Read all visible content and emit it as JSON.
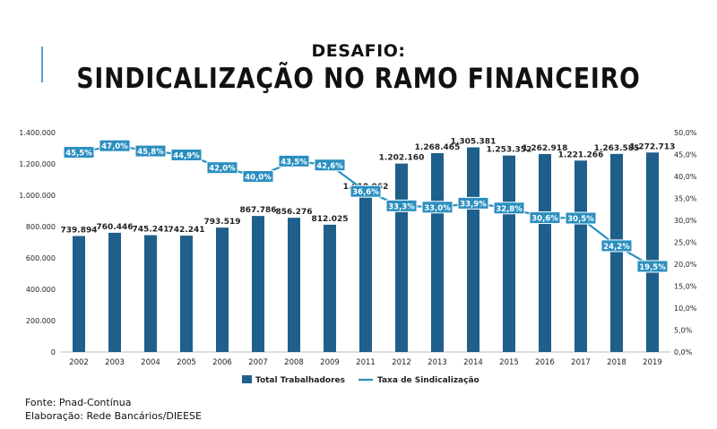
{
  "header": {
    "title_top": "DESAFIO:",
    "title_main": "SINDICALIZAÇÃO NO RAMO FINANCEIRO"
  },
  "footer": {
    "source": "Fonte:  Pnad-Contínua",
    "elaboration": "Elaboração: Rede Bancários/DIEESE"
  },
  "colors": {
    "bar": "#1f5f8b",
    "line": "#2a8fbf",
    "label_box": "#2a8fbf",
    "label_text": "#ffffff",
    "accent": "#4aa3d4"
  },
  "chart_data": {
    "type": "bar",
    "categories": [
      "2002",
      "2003",
      "2004",
      "2005",
      "2006",
      "2007",
      "2008",
      "2009",
      "2011",
      "2012",
      "2013",
      "2014",
      "2015",
      "2016",
      "2017",
      "2018",
      "2019"
    ],
    "series": [
      {
        "name": "Total Trabalhadores",
        "type": "bar",
        "axis": "left",
        "values": [
          739894,
          760446,
          745241,
          742241,
          793519,
          867786,
          856276,
          812025,
          1018062,
          1202160,
          1268465,
          1305381,
          1253352,
          1262918,
          1221266,
          1263585,
          1272713
        ],
        "labels": [
          "739.894",
          "760.446",
          "745.241",
          "742.241",
          "793.519",
          "867.786",
          "856.276",
          "812.025",
          "1.018.062",
          "1.202.160",
          "1.268.465",
          "1.305.381",
          "1.253.352",
          "1.262.918",
          "1.221.266",
          "1.263.585",
          "1.272.713"
        ]
      },
      {
        "name": "Taxa de Sindicalização",
        "type": "line",
        "axis": "right",
        "values": [
          45.5,
          47.0,
          45.8,
          44.9,
          42.0,
          40.0,
          43.5,
          42.6,
          36.6,
          33.3,
          33.0,
          33.9,
          32.8,
          30.6,
          30.5,
          24.2,
          19.5
        ],
        "labels": [
          "45,5%",
          "47,0%",
          "45,8%",
          "44,9%",
          "42,0%",
          "40,0%",
          "43,5%",
          "42,6%",
          "36,6%",
          "33,3%",
          "33,0%",
          "33,9%",
          "32,8%",
          "30,6%",
          "30,5%",
          "24,2%",
          "19,5%"
        ]
      }
    ],
    "y_left": {
      "range": [
        0,
        1400000
      ],
      "ticks": [
        0,
        200000,
        400000,
        600000,
        800000,
        1000000,
        1200000,
        1400000
      ],
      "tick_labels": [
        "0",
        "200.000",
        "400.000",
        "600.000",
        "800.000",
        "1.000.000",
        "1.200.000",
        "1.400.000"
      ]
    },
    "y_right": {
      "range": [
        0,
        50
      ],
      "ticks": [
        0,
        5,
        10,
        15,
        20,
        25,
        30,
        35,
        40,
        45,
        50
      ],
      "tick_labels": [
        "0,0%",
        "5,0%",
        "10,0%",
        "15,0%",
        "20,0%",
        "25,0%",
        "30,0%",
        "35,0%",
        "40,0%",
        "45,0%",
        "50,0%"
      ]
    },
    "grid": false,
    "legend": "bottom"
  }
}
